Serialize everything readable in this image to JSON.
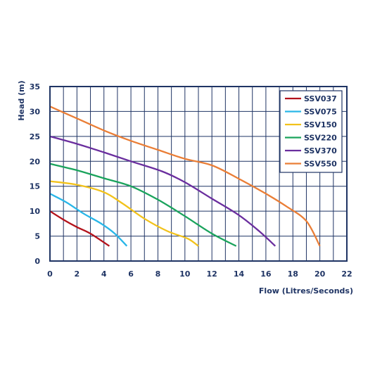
{
  "chart_data": {
    "type": "line",
    "title": "",
    "xlabel": "Flow (Litres/Seconds)",
    "ylabel": "Head (m)",
    "xlim": [
      0,
      22
    ],
    "ylim": [
      0,
      35
    ],
    "xticks": [
      0,
      2,
      4,
      6,
      8,
      10,
      12,
      14,
      16,
      18,
      20,
      22
    ],
    "yticks": [
      0,
      5,
      10,
      15,
      20,
      25,
      30,
      35
    ],
    "grid": true,
    "legend_position": "top-right",
    "axis_color": "#1f3464",
    "series": [
      {
        "name": "SSV037",
        "color": "#b3121b",
        "points": [
          [
            0,
            10
          ],
          [
            1,
            8.3
          ],
          [
            2,
            6.8
          ],
          [
            3,
            5.5
          ],
          [
            4.4,
            3
          ]
        ]
      },
      {
        "name": "SSV075",
        "color": "#29b6e8",
        "points": [
          [
            0,
            13.5
          ],
          [
            1.2,
            11.8
          ],
          [
            2.5,
            9.5
          ],
          [
            3.8,
            7.5
          ],
          [
            4.8,
            5.5
          ],
          [
            5.7,
            3
          ]
        ]
      },
      {
        "name": "SSV150",
        "color": "#f2c21b",
        "points": [
          [
            0,
            16
          ],
          [
            2,
            15.3
          ],
          [
            4,
            13.8
          ],
          [
            5.4,
            11.5
          ],
          [
            7,
            8.5
          ],
          [
            8.7,
            6
          ],
          [
            10.2,
            4.5
          ],
          [
            11,
            3
          ]
        ]
      },
      {
        "name": "SSV220",
        "color": "#1aa35c",
        "points": [
          [
            0,
            19.5
          ],
          [
            2,
            18.2
          ],
          [
            4,
            16.6
          ],
          [
            6,
            15
          ],
          [
            8,
            12.3
          ],
          [
            10,
            9
          ],
          [
            12,
            5.5
          ],
          [
            13.8,
            3
          ]
        ]
      },
      {
        "name": "SSV370",
        "color": "#6a2e9e",
        "points": [
          [
            0,
            25
          ],
          [
            2,
            23.5
          ],
          [
            4,
            21.8
          ],
          [
            6,
            20
          ],
          [
            8.3,
            18
          ],
          [
            10,
            15.8
          ],
          [
            12,
            12.5
          ],
          [
            14,
            9.2
          ],
          [
            15.5,
            6
          ],
          [
            16.7,
            3
          ]
        ]
      },
      {
        "name": "SSV550",
        "color": "#ea7e36",
        "points": [
          [
            0,
            31
          ],
          [
            2,
            28.6
          ],
          [
            4,
            26.2
          ],
          [
            6,
            24.1
          ],
          [
            8,
            22.3
          ],
          [
            10,
            20.5
          ],
          [
            12,
            19.2
          ],
          [
            14,
            16.5
          ],
          [
            16,
            13.5
          ],
          [
            17.5,
            11
          ],
          [
            19,
            8
          ],
          [
            20,
            3
          ]
        ]
      }
    ]
  }
}
